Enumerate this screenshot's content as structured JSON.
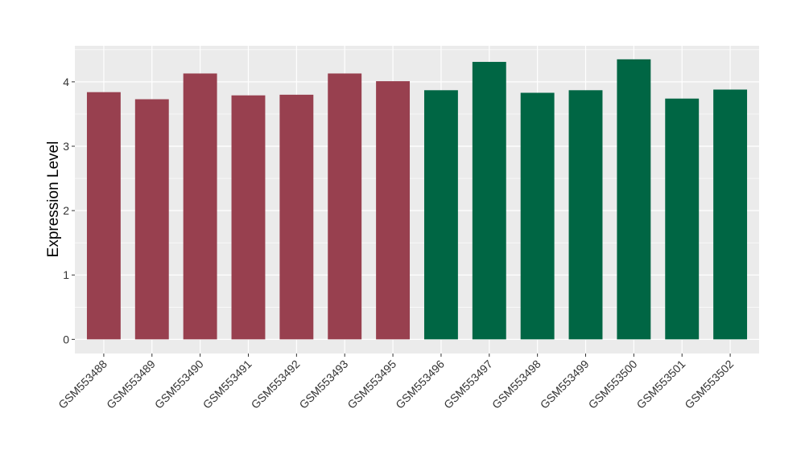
{
  "chart_data": {
    "type": "bar",
    "ylabel": "Expression Level",
    "xlabel": "",
    "ylim": [
      -0.22,
      4.56
    ],
    "yticks": [
      0,
      1,
      2,
      3,
      4
    ],
    "grid": true,
    "categories": [
      "GSM553488",
      "GSM553489",
      "GSM553490",
      "GSM553491",
      "GSM553492",
      "GSM553493",
      "GSM553495",
      "GSM553496",
      "GSM553497",
      "GSM553498",
      "GSM553499",
      "GSM553500",
      "GSM553501",
      "GSM553502"
    ],
    "values": [
      3.84,
      3.73,
      4.13,
      3.79,
      3.8,
      4.13,
      4.01,
      3.87,
      4.31,
      3.83,
      3.87,
      4.35,
      3.74,
      3.88
    ],
    "groups": [
      0,
      0,
      0,
      0,
      0,
      0,
      0,
      1,
      1,
      1,
      1,
      1,
      1,
      1
    ],
    "colors": {
      "group_a": "#98404F",
      "group_b": "#006644",
      "panel_bg": "#EBEBEB",
      "grid": "#FFFFFF"
    }
  }
}
